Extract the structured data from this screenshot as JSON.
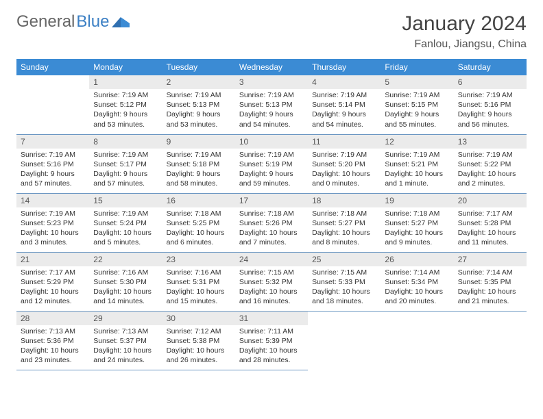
{
  "logo": {
    "text1": "General",
    "text2": "Blue"
  },
  "title": "January 2024",
  "location": "Fanlou, Jiangsu, China",
  "colors": {
    "header_bg": "#3b8bd4",
    "header_text": "#ffffff",
    "daynum_bg": "#ebebeb",
    "border": "#6a96c2",
    "logo_gray": "#666666",
    "logo_blue": "#3b7fc4"
  },
  "weekdays": [
    "Sunday",
    "Monday",
    "Tuesday",
    "Wednesday",
    "Thursday",
    "Friday",
    "Saturday"
  ],
  "weeks": [
    [
      null,
      {
        "n": "1",
        "l1": "Sunrise: 7:19 AM",
        "l2": "Sunset: 5:12 PM",
        "l3": "Daylight: 9 hours",
        "l4": "and 53 minutes."
      },
      {
        "n": "2",
        "l1": "Sunrise: 7:19 AM",
        "l2": "Sunset: 5:13 PM",
        "l3": "Daylight: 9 hours",
        "l4": "and 53 minutes."
      },
      {
        "n": "3",
        "l1": "Sunrise: 7:19 AM",
        "l2": "Sunset: 5:13 PM",
        "l3": "Daylight: 9 hours",
        "l4": "and 54 minutes."
      },
      {
        "n": "4",
        "l1": "Sunrise: 7:19 AM",
        "l2": "Sunset: 5:14 PM",
        "l3": "Daylight: 9 hours",
        "l4": "and 54 minutes."
      },
      {
        "n": "5",
        "l1": "Sunrise: 7:19 AM",
        "l2": "Sunset: 5:15 PM",
        "l3": "Daylight: 9 hours",
        "l4": "and 55 minutes."
      },
      {
        "n": "6",
        "l1": "Sunrise: 7:19 AM",
        "l2": "Sunset: 5:16 PM",
        "l3": "Daylight: 9 hours",
        "l4": "and 56 minutes."
      }
    ],
    [
      {
        "n": "7",
        "l1": "Sunrise: 7:19 AM",
        "l2": "Sunset: 5:16 PM",
        "l3": "Daylight: 9 hours",
        "l4": "and 57 minutes."
      },
      {
        "n": "8",
        "l1": "Sunrise: 7:19 AM",
        "l2": "Sunset: 5:17 PM",
        "l3": "Daylight: 9 hours",
        "l4": "and 57 minutes."
      },
      {
        "n": "9",
        "l1": "Sunrise: 7:19 AM",
        "l2": "Sunset: 5:18 PM",
        "l3": "Daylight: 9 hours",
        "l4": "and 58 minutes."
      },
      {
        "n": "10",
        "l1": "Sunrise: 7:19 AM",
        "l2": "Sunset: 5:19 PM",
        "l3": "Daylight: 9 hours",
        "l4": "and 59 minutes."
      },
      {
        "n": "11",
        "l1": "Sunrise: 7:19 AM",
        "l2": "Sunset: 5:20 PM",
        "l3": "Daylight: 10 hours",
        "l4": "and 0 minutes."
      },
      {
        "n": "12",
        "l1": "Sunrise: 7:19 AM",
        "l2": "Sunset: 5:21 PM",
        "l3": "Daylight: 10 hours",
        "l4": "and 1 minute."
      },
      {
        "n": "13",
        "l1": "Sunrise: 7:19 AM",
        "l2": "Sunset: 5:22 PM",
        "l3": "Daylight: 10 hours",
        "l4": "and 2 minutes."
      }
    ],
    [
      {
        "n": "14",
        "l1": "Sunrise: 7:19 AM",
        "l2": "Sunset: 5:23 PM",
        "l3": "Daylight: 10 hours",
        "l4": "and 3 minutes."
      },
      {
        "n": "15",
        "l1": "Sunrise: 7:19 AM",
        "l2": "Sunset: 5:24 PM",
        "l3": "Daylight: 10 hours",
        "l4": "and 5 minutes."
      },
      {
        "n": "16",
        "l1": "Sunrise: 7:18 AM",
        "l2": "Sunset: 5:25 PM",
        "l3": "Daylight: 10 hours",
        "l4": "and 6 minutes."
      },
      {
        "n": "17",
        "l1": "Sunrise: 7:18 AM",
        "l2": "Sunset: 5:26 PM",
        "l3": "Daylight: 10 hours",
        "l4": "and 7 minutes."
      },
      {
        "n": "18",
        "l1": "Sunrise: 7:18 AM",
        "l2": "Sunset: 5:27 PM",
        "l3": "Daylight: 10 hours",
        "l4": "and 8 minutes."
      },
      {
        "n": "19",
        "l1": "Sunrise: 7:18 AM",
        "l2": "Sunset: 5:27 PM",
        "l3": "Daylight: 10 hours",
        "l4": "and 9 minutes."
      },
      {
        "n": "20",
        "l1": "Sunrise: 7:17 AM",
        "l2": "Sunset: 5:28 PM",
        "l3": "Daylight: 10 hours",
        "l4": "and 11 minutes."
      }
    ],
    [
      {
        "n": "21",
        "l1": "Sunrise: 7:17 AM",
        "l2": "Sunset: 5:29 PM",
        "l3": "Daylight: 10 hours",
        "l4": "and 12 minutes."
      },
      {
        "n": "22",
        "l1": "Sunrise: 7:16 AM",
        "l2": "Sunset: 5:30 PM",
        "l3": "Daylight: 10 hours",
        "l4": "and 14 minutes."
      },
      {
        "n": "23",
        "l1": "Sunrise: 7:16 AM",
        "l2": "Sunset: 5:31 PM",
        "l3": "Daylight: 10 hours",
        "l4": "and 15 minutes."
      },
      {
        "n": "24",
        "l1": "Sunrise: 7:15 AM",
        "l2": "Sunset: 5:32 PM",
        "l3": "Daylight: 10 hours",
        "l4": "and 16 minutes."
      },
      {
        "n": "25",
        "l1": "Sunrise: 7:15 AM",
        "l2": "Sunset: 5:33 PM",
        "l3": "Daylight: 10 hours",
        "l4": "and 18 minutes."
      },
      {
        "n": "26",
        "l1": "Sunrise: 7:14 AM",
        "l2": "Sunset: 5:34 PM",
        "l3": "Daylight: 10 hours",
        "l4": "and 20 minutes."
      },
      {
        "n": "27",
        "l1": "Sunrise: 7:14 AM",
        "l2": "Sunset: 5:35 PM",
        "l3": "Daylight: 10 hours",
        "l4": "and 21 minutes."
      }
    ],
    [
      {
        "n": "28",
        "l1": "Sunrise: 7:13 AM",
        "l2": "Sunset: 5:36 PM",
        "l3": "Daylight: 10 hours",
        "l4": "and 23 minutes."
      },
      {
        "n": "29",
        "l1": "Sunrise: 7:13 AM",
        "l2": "Sunset: 5:37 PM",
        "l3": "Daylight: 10 hours",
        "l4": "and 24 minutes."
      },
      {
        "n": "30",
        "l1": "Sunrise: 7:12 AM",
        "l2": "Sunset: 5:38 PM",
        "l3": "Daylight: 10 hours",
        "l4": "and 26 minutes."
      },
      {
        "n": "31",
        "l1": "Sunrise: 7:11 AM",
        "l2": "Sunset: 5:39 PM",
        "l3": "Daylight: 10 hours",
        "l4": "and 28 minutes."
      },
      null,
      null,
      null
    ]
  ]
}
